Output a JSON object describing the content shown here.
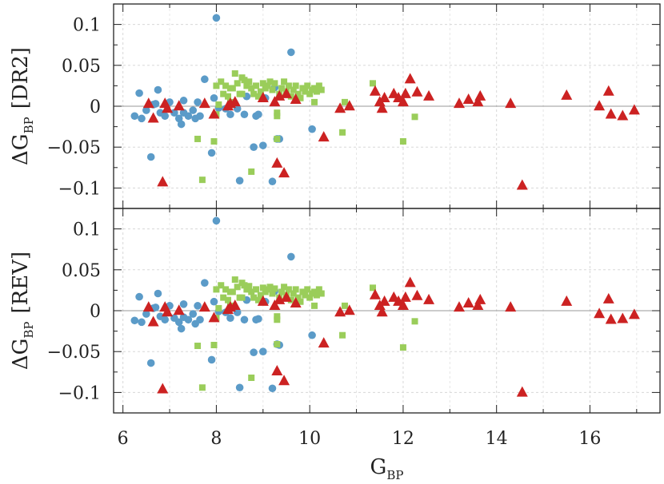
{
  "chart_data": [
    {
      "type": "scatter",
      "xlabel": "G",
      "xlabel_sub": "BP",
      "ylabel": "ΔG",
      "ylabel_sub": "BP",
      "ylabel_tag": "[DR2]",
      "xlim": [
        5.8,
        17.5
      ],
      "ylim": [
        -0.125,
        0.125
      ],
      "xticks": [
        6,
        8,
        10,
        12,
        14,
        16
      ],
      "yticks": [
        -0.1,
        -0.05,
        0,
        0.05,
        0.1
      ],
      "ytick_labels": [
        "−0.1",
        "−0.05",
        "0",
        "0.05",
        "0.1"
      ],
      "grid": true,
      "reference_line_y": 0,
      "series": [
        {
          "marker": "circle",
          "color": "#5b9bc8",
          "x": [
            6.25,
            6.35,
            6.4,
            6.5,
            6.6,
            6.7,
            6.75,
            6.8,
            6.9,
            7.0,
            7.1,
            7.2,
            7.25,
            7.3,
            7.4,
            7.5,
            7.55,
            7.6,
            7.65,
            7.75,
            7.9,
            7.95,
            8.0,
            8.05,
            8.2,
            8.3,
            8.45,
            8.5,
            8.6,
            8.65,
            8.8,
            8.85,
            8.9,
            9.0,
            9.05,
            9.2,
            9.25,
            9.3,
            9.35,
            9.6,
            10.05,
            6.65,
            7.3
          ],
          "y": [
            -0.012,
            0.016,
            -0.015,
            -0.005,
            -0.062,
            0.003,
            0.02,
            -0.008,
            -0.012,
            0.005,
            -0.008,
            -0.015,
            -0.022,
            -0.008,
            -0.012,
            -0.005,
            -0.015,
            0.005,
            -0.012,
            0.033,
            -0.057,
            0.01,
            0.108,
            -0.002,
            -0.003,
            -0.01,
            -0.003,
            -0.091,
            -0.01,
            0.012,
            -0.05,
            -0.012,
            -0.01,
            -0.048,
            0.01,
            -0.092,
            0.023,
            -0.04,
            -0.04,
            0.066,
            -0.028,
            0.002,
            0.007
          ]
        },
        {
          "marker": "square",
          "color": "#9acd5a",
          "x": [
            7.6,
            7.7,
            7.95,
            8.0,
            8.05,
            8.1,
            8.15,
            8.2,
            8.25,
            8.3,
            8.35,
            8.4,
            8.45,
            8.5,
            8.55,
            8.6,
            8.65,
            8.7,
            8.75,
            8.8,
            8.85,
            8.9,
            8.95,
            9.0,
            9.05,
            9.1,
            9.15,
            9.2,
            9.25,
            9.3,
            9.35,
            9.4,
            9.45,
            9.5,
            9.55,
            9.6,
            9.65,
            9.7,
            9.75,
            9.8,
            9.85,
            9.9,
            9.95,
            10.0,
            10.05,
            10.1,
            10.15,
            10.2,
            10.25,
            10.7,
            10.75,
            11.35,
            12.0,
            12.25,
            8.0,
            8.3,
            8.55,
            8.75,
            9.3,
            9.3,
            10.1
          ],
          "y": [
            -0.04,
            -0.09,
            -0.043,
            0.025,
            0.002,
            0.03,
            0.015,
            0.025,
            0.012,
            0.005,
            0.022,
            0.04,
            0.028,
            0.015,
            0.035,
            0.032,
            0.025,
            0.03,
            0.022,
            0.015,
            0.025,
            0.012,
            0.018,
            0.028,
            0.022,
            0.025,
            0.03,
            0.02,
            0.028,
            -0.008,
            0.015,
            0.022,
            0.03,
            0.018,
            0.025,
            0.012,
            0.02,
            0.025,
            0.015,
            0.01,
            0.022,
            0.018,
            0.025,
            0.015,
            0.02,
            0.022,
            0.018,
            0.025,
            0.02,
            -0.032,
            0.005,
            0.028,
            -0.043,
            -0.013,
            -0.01,
            0.022,
            0.015,
            -0.08,
            -0.012,
            -0.04,
            0.005
          ]
        },
        {
          "marker": "triangle",
          "color": "#cc2222",
          "x": [
            6.55,
            6.65,
            6.85,
            6.9,
            6.95,
            7.2,
            7.75,
            7.95,
            8.25,
            8.3,
            8.4,
            9.0,
            9.25,
            9.3,
            9.35,
            9.45,
            9.5,
            9.7,
            10.3,
            10.65,
            10.85,
            11.4,
            11.5,
            11.55,
            11.6,
            11.8,
            11.9,
            12.0,
            12.05,
            12.15,
            12.3,
            12.55,
            13.2,
            13.4,
            13.6,
            13.65,
            14.3,
            14.55,
            15.5,
            16.2,
            16.4,
            16.45,
            16.7,
            16.95
          ],
          "y": [
            0.003,
            -0.015,
            -0.093,
            0.003,
            -0.003,
            0.0,
            0.003,
            -0.01,
            0.0,
            0.003,
            0.005,
            0.01,
            0.005,
            -0.07,
            0.012,
            -0.082,
            0.015,
            0.008,
            -0.038,
            -0.003,
            0.0,
            0.018,
            0.005,
            -0.003,
            0.01,
            0.015,
            0.01,
            0.005,
            0.015,
            0.033,
            0.017,
            0.012,
            0.003,
            0.008,
            0.005,
            0.012,
            0.003,
            -0.097,
            0.013,
            0.0,
            0.018,
            -0.01,
            -0.012,
            -0.005
          ]
        }
      ]
    },
    {
      "type": "scatter",
      "xlabel": "G",
      "xlabel_sub": "BP",
      "ylabel": "ΔG",
      "ylabel_sub": "BP",
      "ylabel_tag": "[REV]",
      "xlim": [
        5.8,
        17.5
      ],
      "ylim": [
        -0.125,
        0.125
      ],
      "xticks": [
        6,
        8,
        10,
        12,
        14,
        16
      ],
      "yticks": [
        -0.1,
        -0.05,
        0,
        0.05,
        0.1
      ],
      "ytick_labels": [
        "−0.1",
        "−0.05",
        "0",
        "0.05",
        "0.1"
      ],
      "grid": true,
      "reference_line_y": 0,
      "series": [
        {
          "marker": "circle",
          "color": "#5b9bc8",
          "x": [
            6.25,
            6.35,
            6.4,
            6.5,
            6.6,
            6.7,
            6.75,
            6.8,
            6.9,
            7.0,
            7.1,
            7.2,
            7.25,
            7.3,
            7.4,
            7.5,
            7.55,
            7.6,
            7.65,
            7.75,
            7.9,
            7.95,
            8.0,
            8.05,
            8.2,
            8.3,
            8.45,
            8.5,
            8.6,
            8.65,
            8.8,
            8.85,
            8.9,
            9.0,
            9.05,
            9.2,
            9.25,
            9.3,
            9.35,
            9.6,
            10.05,
            6.65,
            7.3
          ],
          "y": [
            -0.012,
            0.017,
            -0.014,
            -0.004,
            -0.064,
            0.004,
            0.021,
            -0.007,
            -0.011,
            0.006,
            -0.009,
            -0.014,
            -0.022,
            -0.008,
            -0.011,
            -0.004,
            -0.016,
            0.006,
            -0.011,
            0.034,
            -0.06,
            0.011,
            0.11,
            -0.001,
            -0.002,
            -0.009,
            -0.002,
            -0.094,
            -0.011,
            0.013,
            -0.051,
            -0.011,
            -0.01,
            -0.05,
            0.011,
            -0.095,
            0.024,
            -0.041,
            -0.042,
            0.066,
            -0.03,
            0.003,
            0.008
          ]
        },
        {
          "marker": "square",
          "color": "#9acd5a",
          "x": [
            7.6,
            7.7,
            7.95,
            8.0,
            8.05,
            8.1,
            8.15,
            8.2,
            8.25,
            8.3,
            8.35,
            8.4,
            8.45,
            8.5,
            8.55,
            8.6,
            8.65,
            8.7,
            8.75,
            8.8,
            8.85,
            8.9,
            8.95,
            9.0,
            9.05,
            9.1,
            9.15,
            9.2,
            9.25,
            9.3,
            9.35,
            9.4,
            9.45,
            9.5,
            9.55,
            9.6,
            9.65,
            9.7,
            9.75,
            9.8,
            9.85,
            9.9,
            9.95,
            10.0,
            10.05,
            10.1,
            10.15,
            10.2,
            10.25,
            10.7,
            10.75,
            11.35,
            12.0,
            12.25,
            8.0,
            8.3,
            8.55,
            8.75,
            9.3,
            9.3,
            10.1
          ],
          "y": [
            -0.043,
            -0.094,
            -0.042,
            0.026,
            0.003,
            0.031,
            0.016,
            0.026,
            0.013,
            0.006,
            0.023,
            0.038,
            0.029,
            0.016,
            0.034,
            0.031,
            0.026,
            0.03,
            0.023,
            0.016,
            0.026,
            0.013,
            0.019,
            0.028,
            0.023,
            0.026,
            0.029,
            0.021,
            0.027,
            -0.007,
            0.016,
            0.023,
            0.029,
            0.019,
            0.026,
            0.013,
            0.021,
            0.026,
            0.016,
            0.011,
            0.023,
            0.019,
            0.026,
            0.016,
            0.021,
            0.023,
            0.019,
            0.026,
            0.021,
            -0.03,
            0.006,
            0.028,
            -0.045,
            -0.013,
            -0.009,
            0.023,
            0.016,
            -0.082,
            -0.011,
            -0.041,
            0.006
          ]
        },
        {
          "marker": "triangle",
          "color": "#cc2222",
          "x": [
            6.55,
            6.65,
            6.85,
            6.9,
            6.95,
            7.2,
            7.75,
            7.95,
            8.25,
            8.3,
            8.4,
            9.0,
            9.25,
            9.3,
            9.35,
            9.45,
            9.5,
            9.7,
            10.3,
            10.65,
            10.85,
            11.4,
            11.5,
            11.55,
            11.6,
            11.8,
            11.9,
            12.0,
            12.05,
            12.15,
            12.3,
            12.55,
            13.2,
            13.4,
            13.6,
            13.65,
            14.3,
            14.55,
            15.5,
            16.2,
            16.4,
            16.45,
            16.7,
            16.95
          ],
          "y": [
            0.004,
            -0.014,
            -0.096,
            0.004,
            -0.002,
            0.0,
            0.004,
            -0.009,
            0.001,
            0.004,
            0.006,
            0.011,
            0.006,
            -0.074,
            0.013,
            -0.086,
            0.016,
            0.009,
            -0.04,
            -0.002,
            0.0,
            0.019,
            0.006,
            -0.002,
            0.011,
            0.016,
            0.011,
            0.006,
            0.016,
            0.034,
            0.018,
            0.013,
            0.004,
            0.009,
            0.006,
            0.013,
            0.004,
            -0.1,
            0.011,
            -0.004,
            0.014,
            -0.011,
            -0.01,
            -0.005
          ]
        }
      ]
    }
  ]
}
